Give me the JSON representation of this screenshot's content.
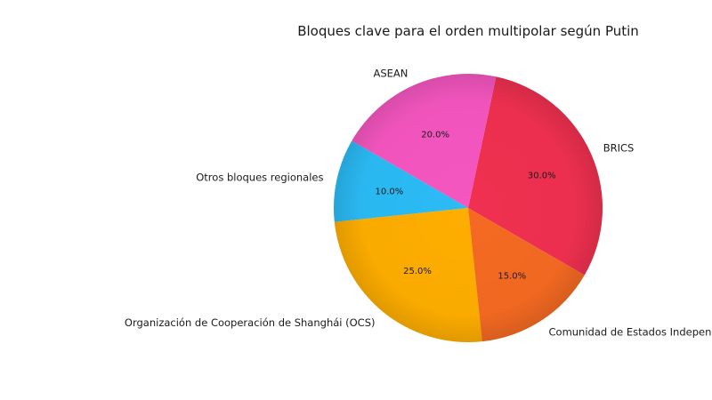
{
  "chart_data": {
    "type": "pie",
    "title": "Bloques clave para el orden multipolar según Putin",
    "slices": [
      {
        "label": "BRICS",
        "value": 30.0,
        "pct_label": "30.0%",
        "color": "#f03050"
      },
      {
        "label": "ASEAN",
        "value": 20.0,
        "pct_label": "20.0%",
        "color": "#f556c0"
      },
      {
        "label": "Otros bloques regionales",
        "value": 10.0,
        "pct_label": "10.0%",
        "color": "#2bbbf5"
      },
      {
        "label": "Organización de Cooperación de Shanghái (OCS)",
        "value": 25.0,
        "pct_label": "25.0%",
        "color": "#ffae00"
      },
      {
        "label": "Comunidad de Estados Independientes (CEI)",
        "value": 15.0,
        "pct_label": "15.0%",
        "color": "#f56a22"
      }
    ],
    "start_angle_deg": -30,
    "direction": "counterclockwise",
    "legend": "none"
  }
}
